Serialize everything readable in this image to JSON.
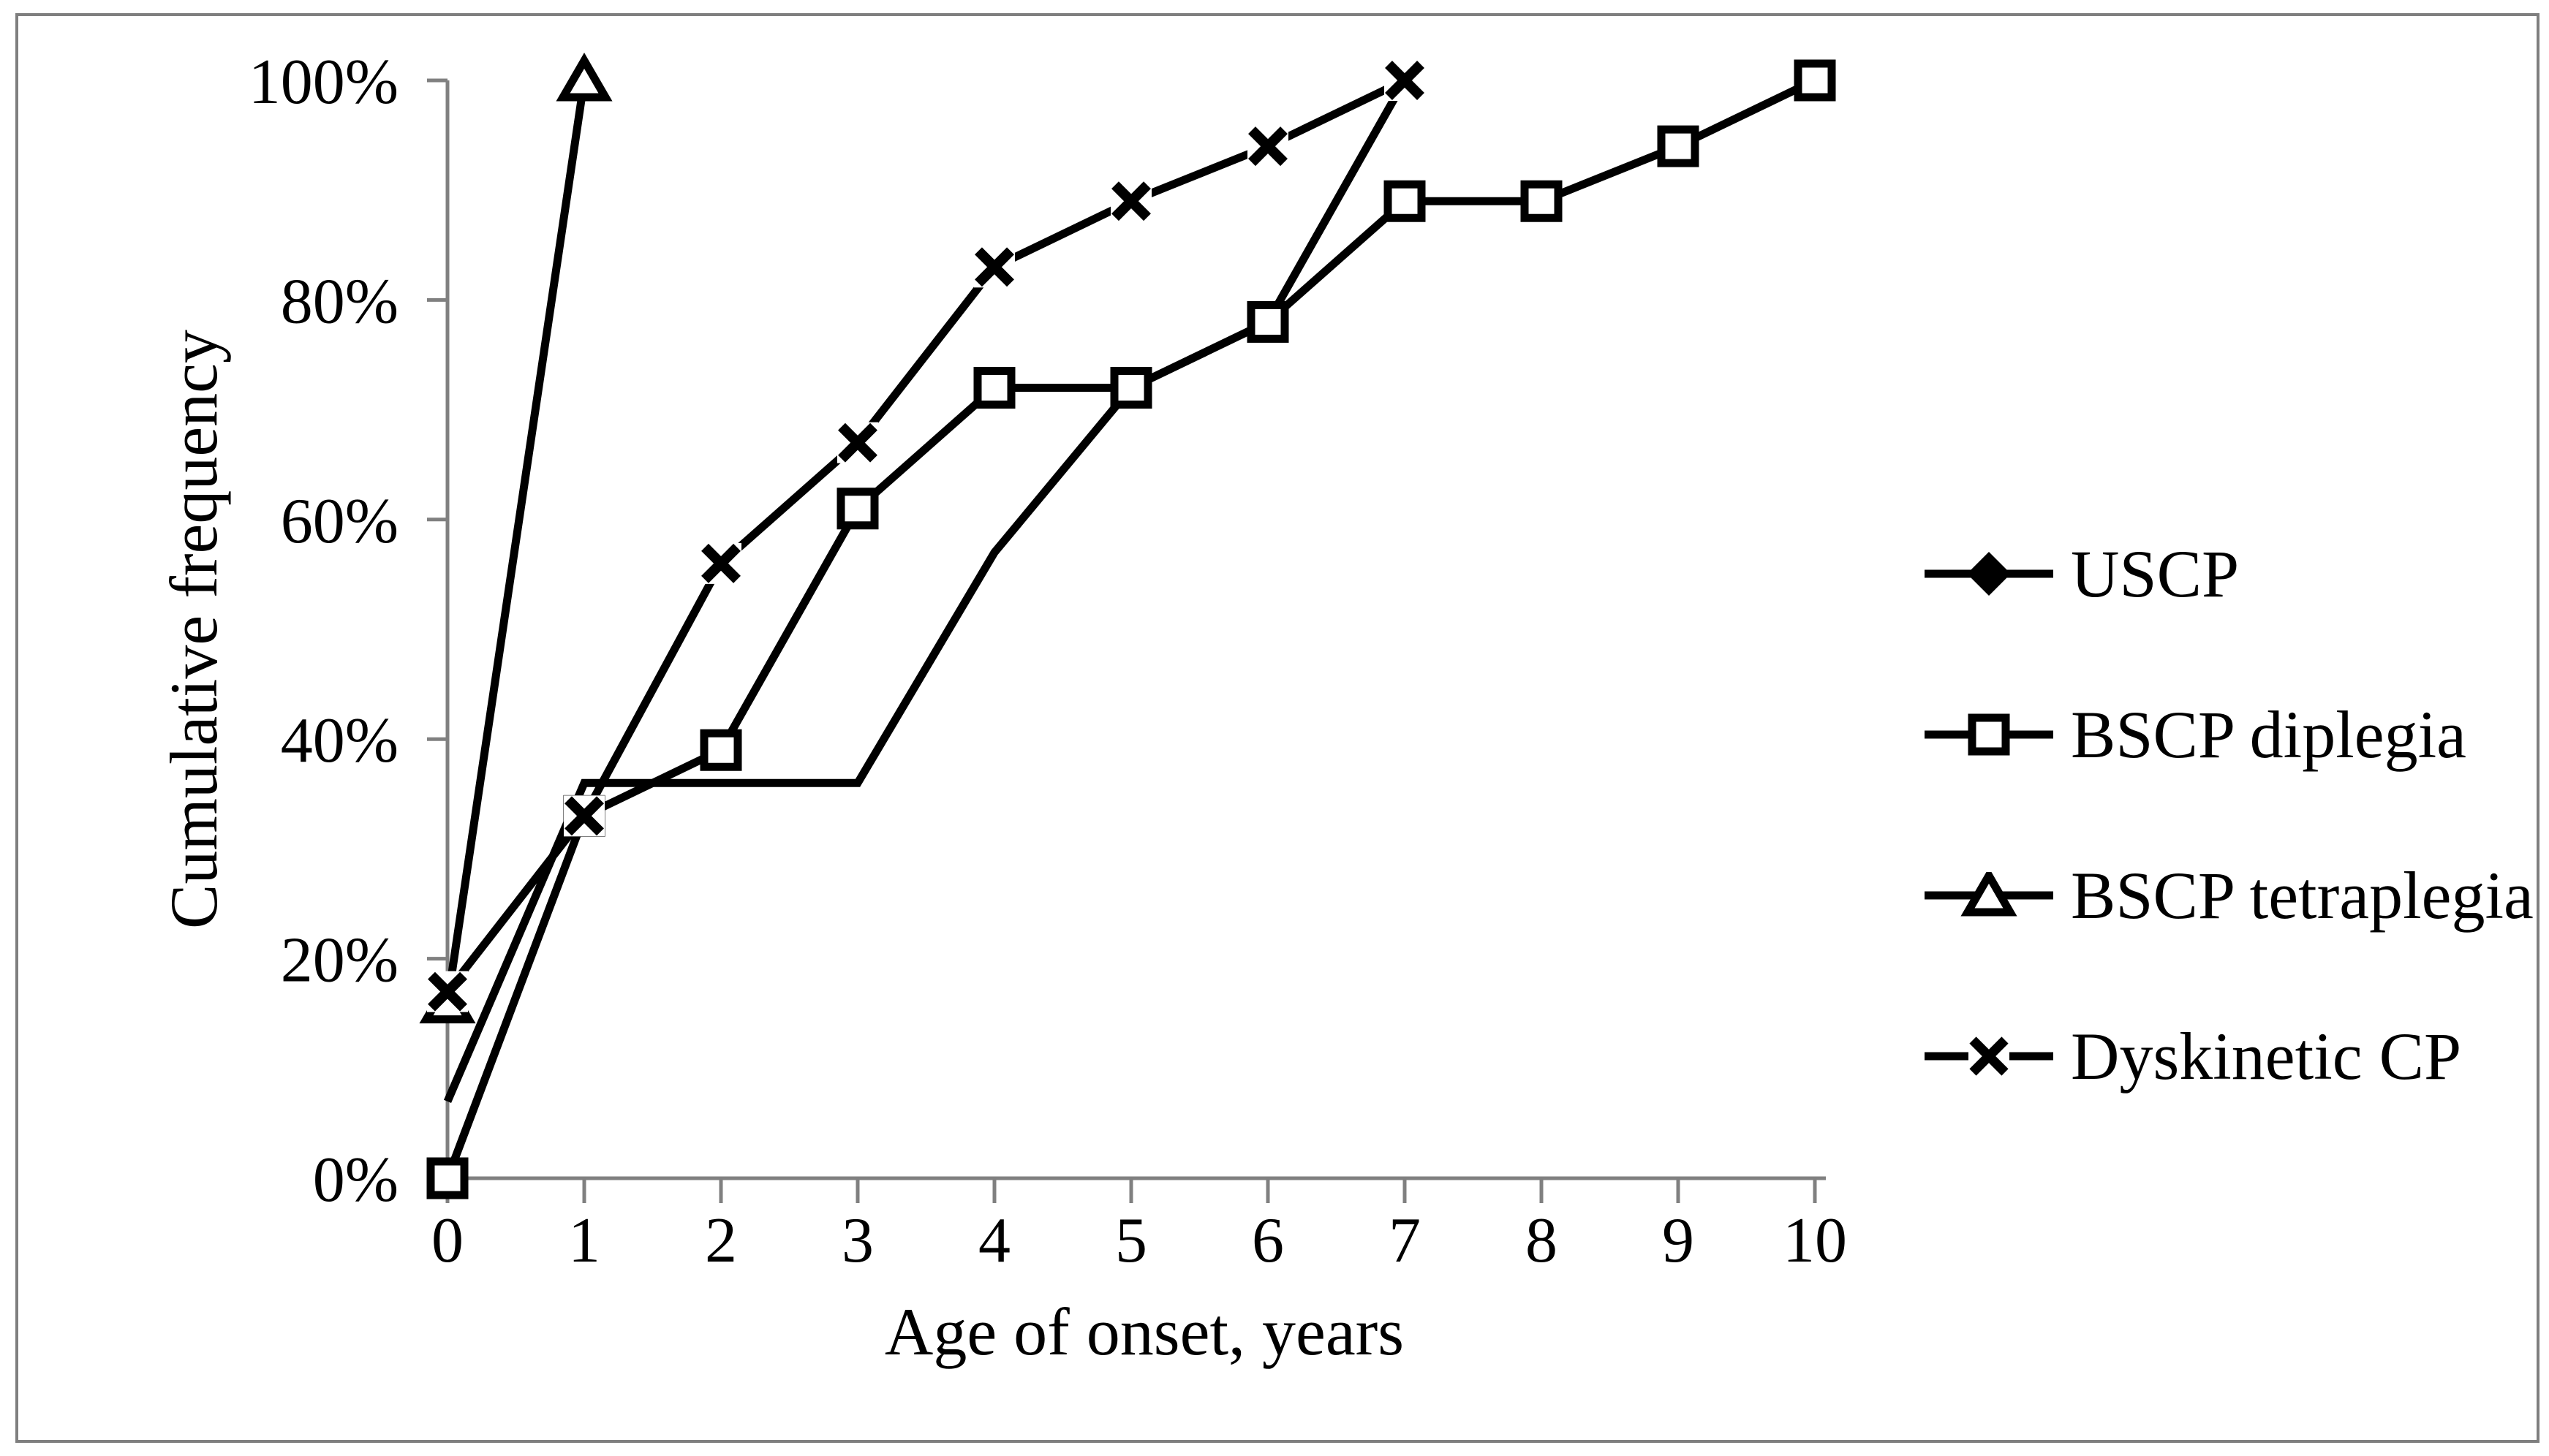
{
  "figure": {
    "title": "",
    "background_color": "#ffffff",
    "frame_color": "#7f7f7f",
    "axis_color": "#808080",
    "series_color": "#000000",
    "text_color": "#000000"
  },
  "chart_data": {
    "type": "line",
    "title": "",
    "xlabel": "Age of onset, years",
    "ylabel": "Cumulative frequency",
    "xlim": [
      0,
      10
    ],
    "ylim": [
      0,
      100
    ],
    "grid": false,
    "legend_position": "right",
    "x_ticks": [
      0,
      1,
      2,
      3,
      4,
      5,
      6,
      7,
      8,
      9,
      10
    ],
    "x_tick_labels": [
      "0",
      "1",
      "2",
      "3",
      "4",
      "5",
      "6",
      "7",
      "8",
      "9",
      "10"
    ],
    "y_ticks": [
      0,
      20,
      40,
      60,
      80,
      100
    ],
    "y_tick_labels": [
      "0%",
      "20%",
      "40%",
      "60%",
      "80%",
      "100%"
    ],
    "series": [
      {
        "name": "USCP",
        "marker": "diamond-filled",
        "plot_markers": false,
        "x": [
          0,
          1,
          2,
          3,
          4,
          5,
          6,
          7
        ],
        "values": [
          7,
          36,
          36,
          36,
          57,
          72,
          78,
          100
        ]
      },
      {
        "name": "BSCP diplegia",
        "marker": "square-open",
        "plot_markers": true,
        "x": [
          0,
          1,
          2,
          3,
          4,
          5,
          6,
          7,
          8,
          9,
          10
        ],
        "values": [
          0,
          33,
          39,
          61,
          72,
          72,
          78,
          89,
          89,
          94,
          100
        ]
      },
      {
        "name": "BSCP tetraplegia",
        "marker": "triangle-open",
        "plot_markers": true,
        "x": [
          0,
          1
        ],
        "values": [
          16,
          100
        ]
      },
      {
        "name": "Dyskinetic CP",
        "marker": "x",
        "plot_markers": true,
        "x": [
          0,
          1,
          2,
          3,
          4,
          5,
          6,
          7
        ],
        "values": [
          17,
          33,
          56,
          67,
          83,
          89,
          94,
          100
        ]
      }
    ]
  }
}
